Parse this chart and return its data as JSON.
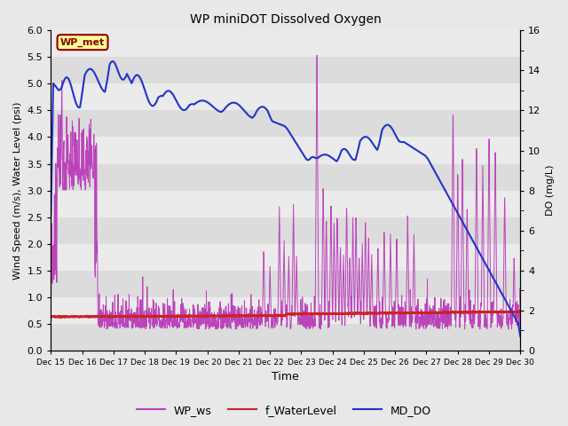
{
  "title": "WP miniDOT Dissolved Oxygen",
  "xlabel": "Time",
  "ylabel_left": "Wind Speed (m/s), Water Level (psi)",
  "ylabel_right": "DO (mg/L)",
  "annotation_text": "WP_met",
  "annotation_bg": "#FFFF99",
  "annotation_border": "#8B0000",
  "annotation_text_color": "#8B0000",
  "xlim": [
    15,
    30
  ],
  "ylim_left": [
    0.0,
    6.0
  ],
  "ylim_right": [
    0,
    16
  ],
  "xtick_positions": [
    15,
    16,
    17,
    18,
    19,
    20,
    21,
    22,
    23,
    24,
    25,
    26,
    27,
    28,
    29,
    30
  ],
  "xtick_labels": [
    "Dec 15",
    "Dec 16",
    "Dec 17",
    "Dec 18",
    "Dec 19",
    "Dec 20",
    "Dec 21",
    "Dec 22",
    "Dec 23",
    "Dec 24",
    "Dec 25",
    "Dec 26",
    "Dec 27",
    "Dec 28",
    "Dec 29",
    "Dec 30"
  ],
  "yticks_left": [
    0.0,
    0.5,
    1.0,
    1.5,
    2.0,
    2.5,
    3.0,
    3.5,
    4.0,
    4.5,
    5.0,
    5.5,
    6.0
  ],
  "yticks_right": [
    0,
    2,
    4,
    6,
    8,
    10,
    12,
    14,
    16
  ],
  "bg_color": "#e8e8e8",
  "band_colors": [
    "#dcdcdc",
    "#ebebeb"
  ],
  "grid_color": "#ffffff",
  "wp_ws_color": "#bb44bb",
  "f_water_color": "#cc2222",
  "md_do_color": "#2233cc",
  "legend_labels": [
    "WP_ws",
    "f_WaterLevel",
    "MD_DO"
  ]
}
